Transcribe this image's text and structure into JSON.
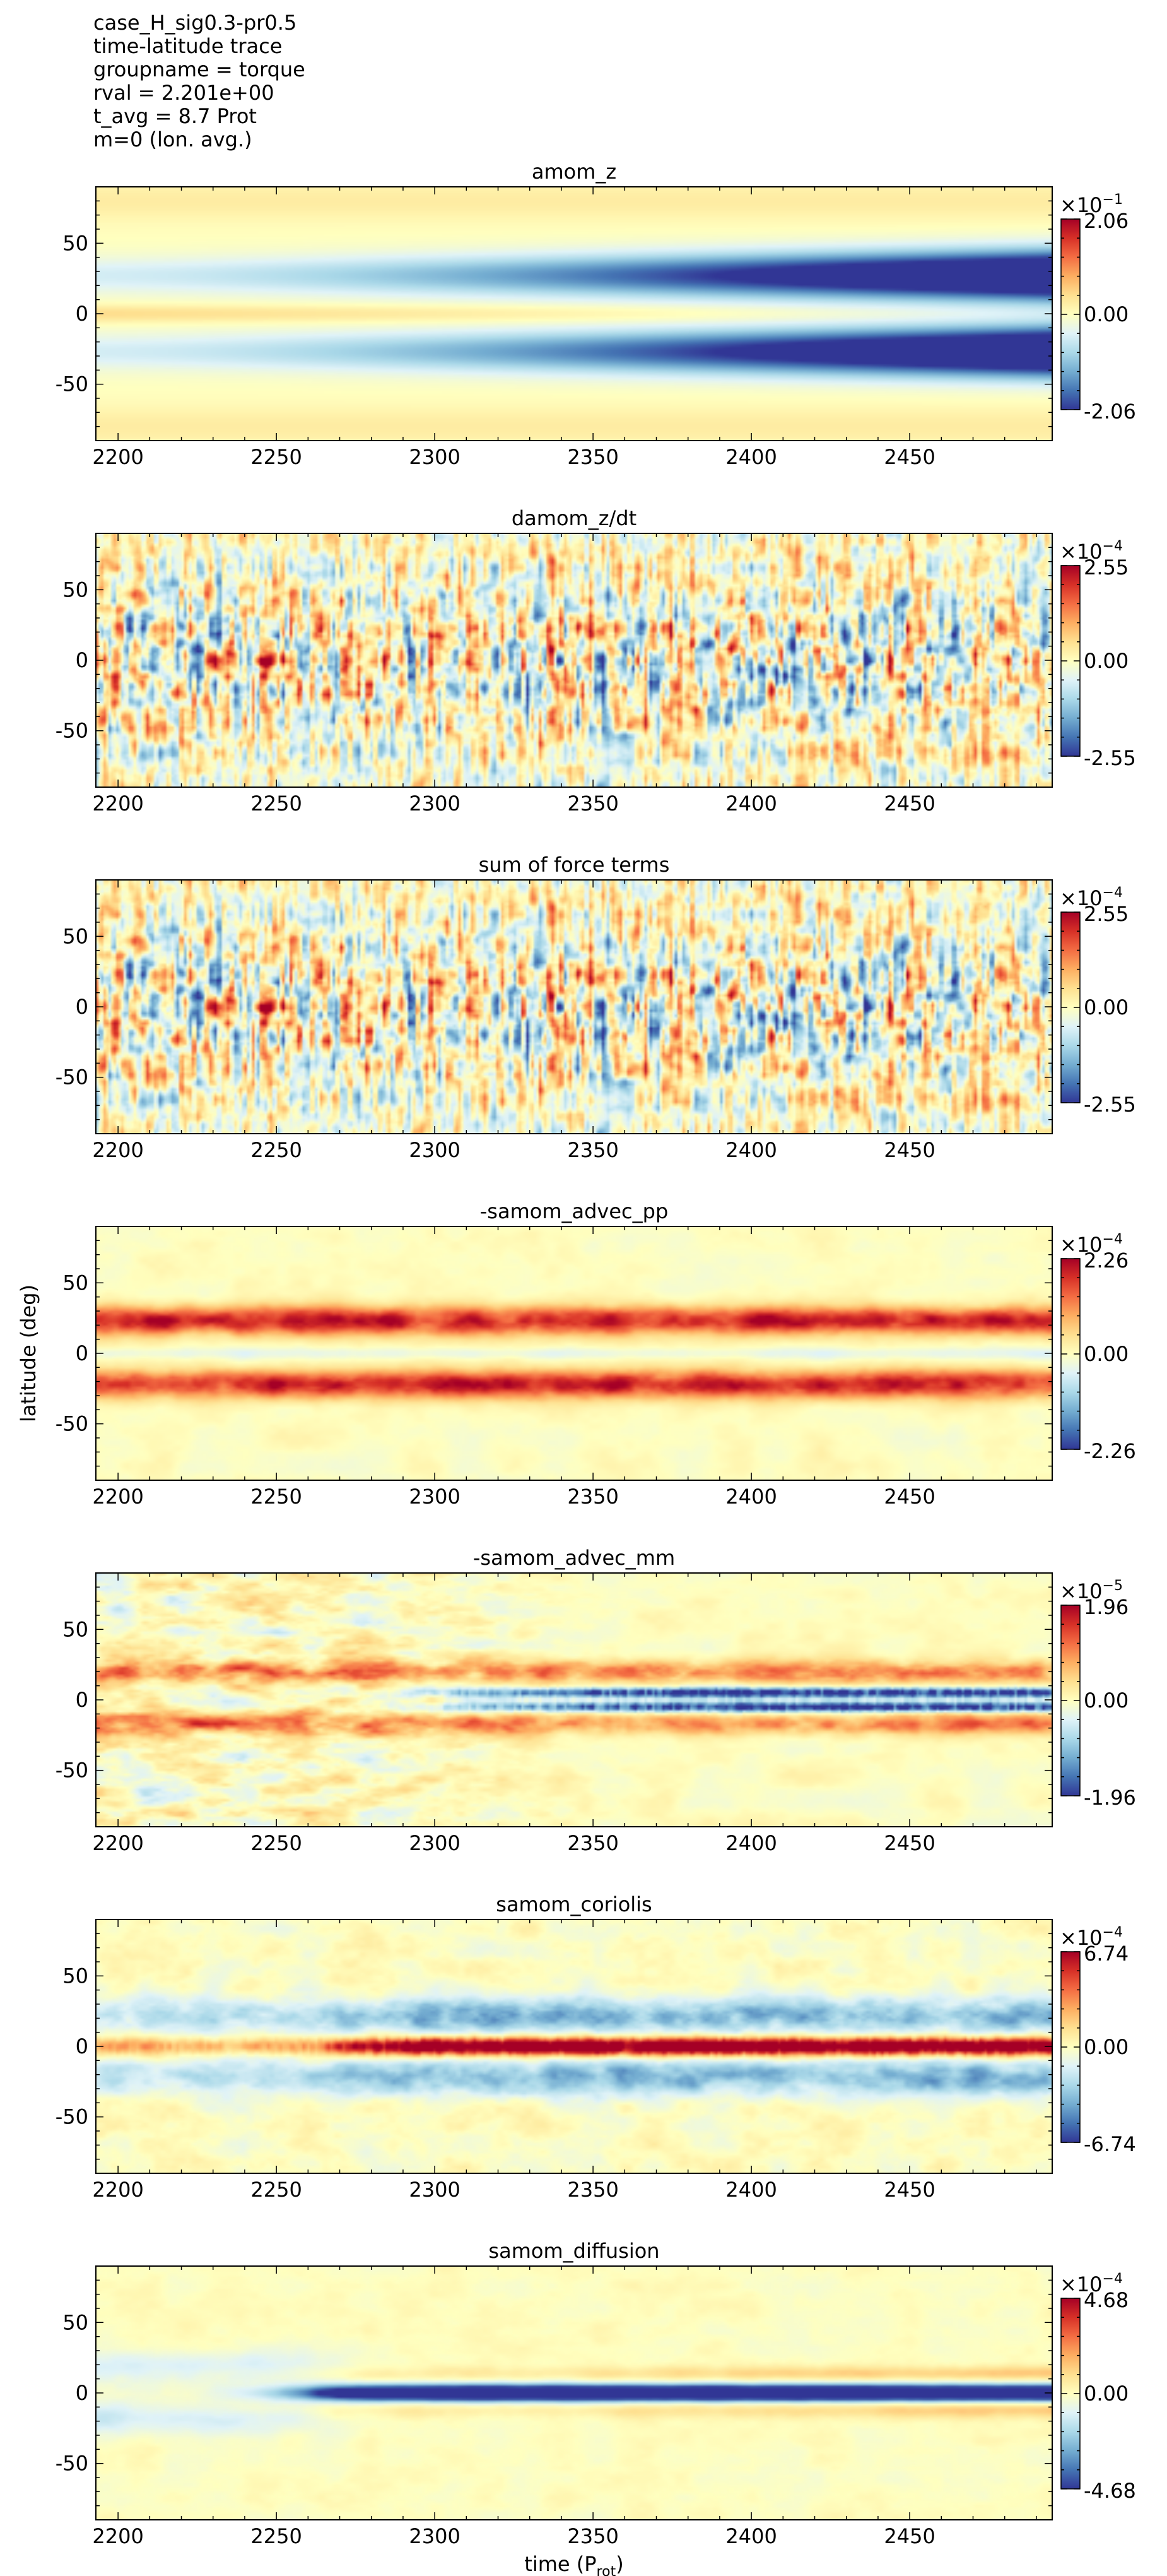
{
  "header": {
    "lines": [
      "case_H_sig0.3-pr0.5",
      "time-latitude trace",
      "groupname = torque",
      "rval = 2.201e+00",
      "t_avg = 8.7 Prot",
      "m=0 (lon. avg.)"
    ]
  },
  "chart_data": [
    {
      "type": "heatmap",
      "title": "amom_z",
      "pattern": "amom",
      "xlim": [
        2193,
        2495
      ],
      "ylim": [
        -90,
        90
      ],
      "x_ticks": [
        "2200",
        "2250",
        "2300",
        "2350",
        "2400",
        "2450"
      ],
      "y_ticks": [
        "50",
        "0",
        "-50"
      ],
      "colorbar": {
        "exponent": "-1",
        "max": "2.06",
        "zero": "0.00",
        "min": "-2.06",
        "cmap": "RdYlBu_r"
      }
    },
    {
      "type": "heatmap",
      "title": "damom_z/dt",
      "pattern": "noise",
      "xlim": [
        2193,
        2495
      ],
      "ylim": [
        -90,
        90
      ],
      "x_ticks": [
        "2200",
        "2250",
        "2300",
        "2350",
        "2400",
        "2450"
      ],
      "y_ticks": [
        "50",
        "0",
        "-50"
      ],
      "colorbar": {
        "exponent": "-4",
        "max": "2.55",
        "zero": "0.00",
        "min": "-2.55",
        "cmap": "RdYlBu_r"
      }
    },
    {
      "type": "heatmap",
      "title": "sum of force terms",
      "pattern": "noise",
      "xlim": [
        2193,
        2495
      ],
      "ylim": [
        -90,
        90
      ],
      "x_ticks": [
        "2200",
        "2250",
        "2300",
        "2350",
        "2400",
        "2450"
      ],
      "y_ticks": [
        "50",
        "0",
        "-50"
      ],
      "colorbar": {
        "exponent": "-4",
        "max": "2.55",
        "zero": "0.00",
        "min": "-2.55",
        "cmap": "RdYlBu_r"
      }
    },
    {
      "type": "heatmap",
      "title": "-samom_advec_pp",
      "pattern": "pp",
      "ylabel": "latitude (deg)",
      "xlim": [
        2193,
        2495
      ],
      "ylim": [
        -90,
        90
      ],
      "x_ticks": [
        "2200",
        "2250",
        "2300",
        "2350",
        "2400",
        "2450"
      ],
      "y_ticks": [
        "50",
        "0",
        "-50"
      ],
      "colorbar": {
        "exponent": "-4",
        "max": "2.26",
        "zero": "0.00",
        "min": "-2.26",
        "cmap": "RdYlBu_r"
      }
    },
    {
      "type": "heatmap",
      "title": "-samom_advec_mm",
      "pattern": "mm",
      "xlim": [
        2193,
        2495
      ],
      "ylim": [
        -90,
        90
      ],
      "x_ticks": [
        "2200",
        "2250",
        "2300",
        "2350",
        "2400",
        "2450"
      ],
      "y_ticks": [
        "50",
        "0",
        "-50"
      ],
      "colorbar": {
        "exponent": "-5",
        "max": "1.96",
        "zero": "0.00",
        "min": "-1.96",
        "cmap": "RdYlBu_r"
      }
    },
    {
      "type": "heatmap",
      "title": "samom_coriolis",
      "pattern": "coriolis",
      "xlim": [
        2193,
        2495
      ],
      "ylim": [
        -90,
        90
      ],
      "x_ticks": [
        "2200",
        "2250",
        "2300",
        "2350",
        "2400",
        "2450"
      ],
      "y_ticks": [
        "50",
        "0",
        "-50"
      ],
      "colorbar": {
        "exponent": "-4",
        "max": "6.74",
        "zero": "0.00",
        "min": "-6.74",
        "cmap": "RdYlBu_r"
      }
    },
    {
      "type": "heatmap",
      "title": "samom_diffusion",
      "pattern": "diffusion",
      "xlabel": "time (P",
      "xlabel_sub": "rot",
      "xlabel_end": ")",
      "xlim": [
        2193,
        2495
      ],
      "ylim": [
        -90,
        90
      ],
      "x_ticks": [
        "2200",
        "2250",
        "2300",
        "2350",
        "2400",
        "2450"
      ],
      "y_ticks": [
        "50",
        "0",
        "-50"
      ],
      "colorbar": {
        "exponent": "-4",
        "max": "4.68",
        "zero": "0.00",
        "min": "-4.68",
        "cmap": "RdYlBu_r"
      }
    }
  ]
}
